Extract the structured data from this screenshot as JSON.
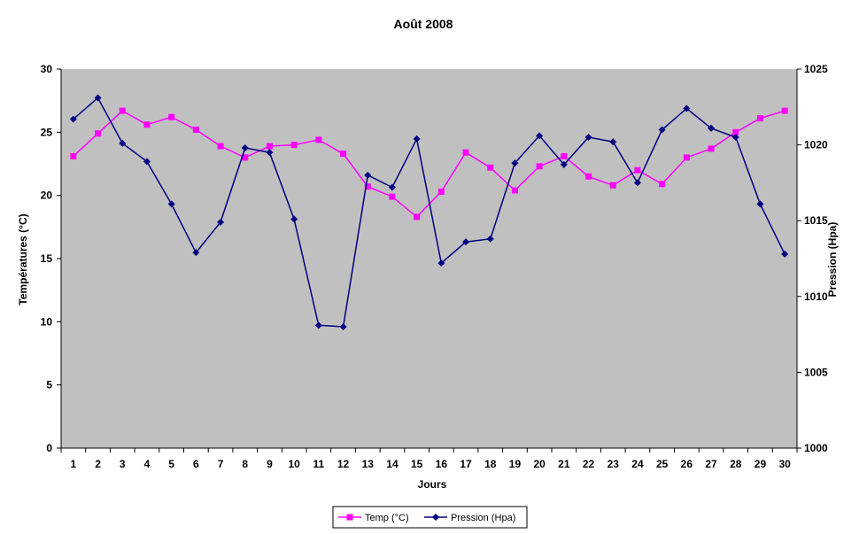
{
  "chart_data": {
    "type": "line",
    "title": "Août 2008",
    "xlabel": "Jours",
    "ylabel_left": "Températures (°C)",
    "ylabel_right": "Pression (Hpa)",
    "ylim_left": [
      0,
      30
    ],
    "yticks_left": [
      0,
      5,
      10,
      15,
      20,
      25,
      30
    ],
    "ylim_right": [
      1000,
      1025
    ],
    "yticks_right": [
      1000,
      1005,
      1010,
      1015,
      1020,
      1025
    ],
    "grid": false,
    "plot_background": "#c0c0c0",
    "legend_position": "bottom",
    "categories": [
      "1",
      "2",
      "3",
      "4",
      "5",
      "6",
      "7",
      "8",
      "9",
      "10",
      "11",
      "12",
      "13",
      "14",
      "15",
      "16",
      "17",
      "18",
      "19",
      "20",
      "21",
      "22",
      "23",
      "24",
      "25",
      "26",
      "27",
      "28",
      "29",
      "30"
    ],
    "series": [
      {
        "name": "Temp (°C)",
        "axis": "left",
        "color": "#ff00ff",
        "marker": "square",
        "values": [
          23.1,
          24.9,
          26.7,
          25.6,
          26.2,
          25.2,
          23.9,
          23.0,
          23.9,
          24.0,
          24.4,
          23.3,
          20.7,
          19.9,
          18.3,
          20.3,
          23.4,
          22.2,
          20.4,
          22.3,
          23.1,
          21.5,
          20.8,
          22.0,
          20.9,
          23.0,
          23.7,
          25.0,
          26.1,
          26.7
        ]
      },
      {
        "name": "Pression (Hpa)",
        "axis": "right",
        "color": "#000080",
        "marker": "diamond",
        "values": [
          1021.7,
          1023.1,
          1020.1,
          1018.9,
          1016.1,
          1012.9,
          1014.9,
          1019.8,
          1019.5,
          1015.1,
          1008.1,
          1008.0,
          1018.0,
          1017.2,
          1020.4,
          1012.2,
          1013.6,
          1013.8,
          1018.8,
          1020.6,
          1018.7,
          1020.5,
          1020.2,
          1017.5,
          1021.0,
          1022.4,
          1021.1,
          1020.5,
          1016.1,
          1012.8
        ]
      }
    ]
  }
}
